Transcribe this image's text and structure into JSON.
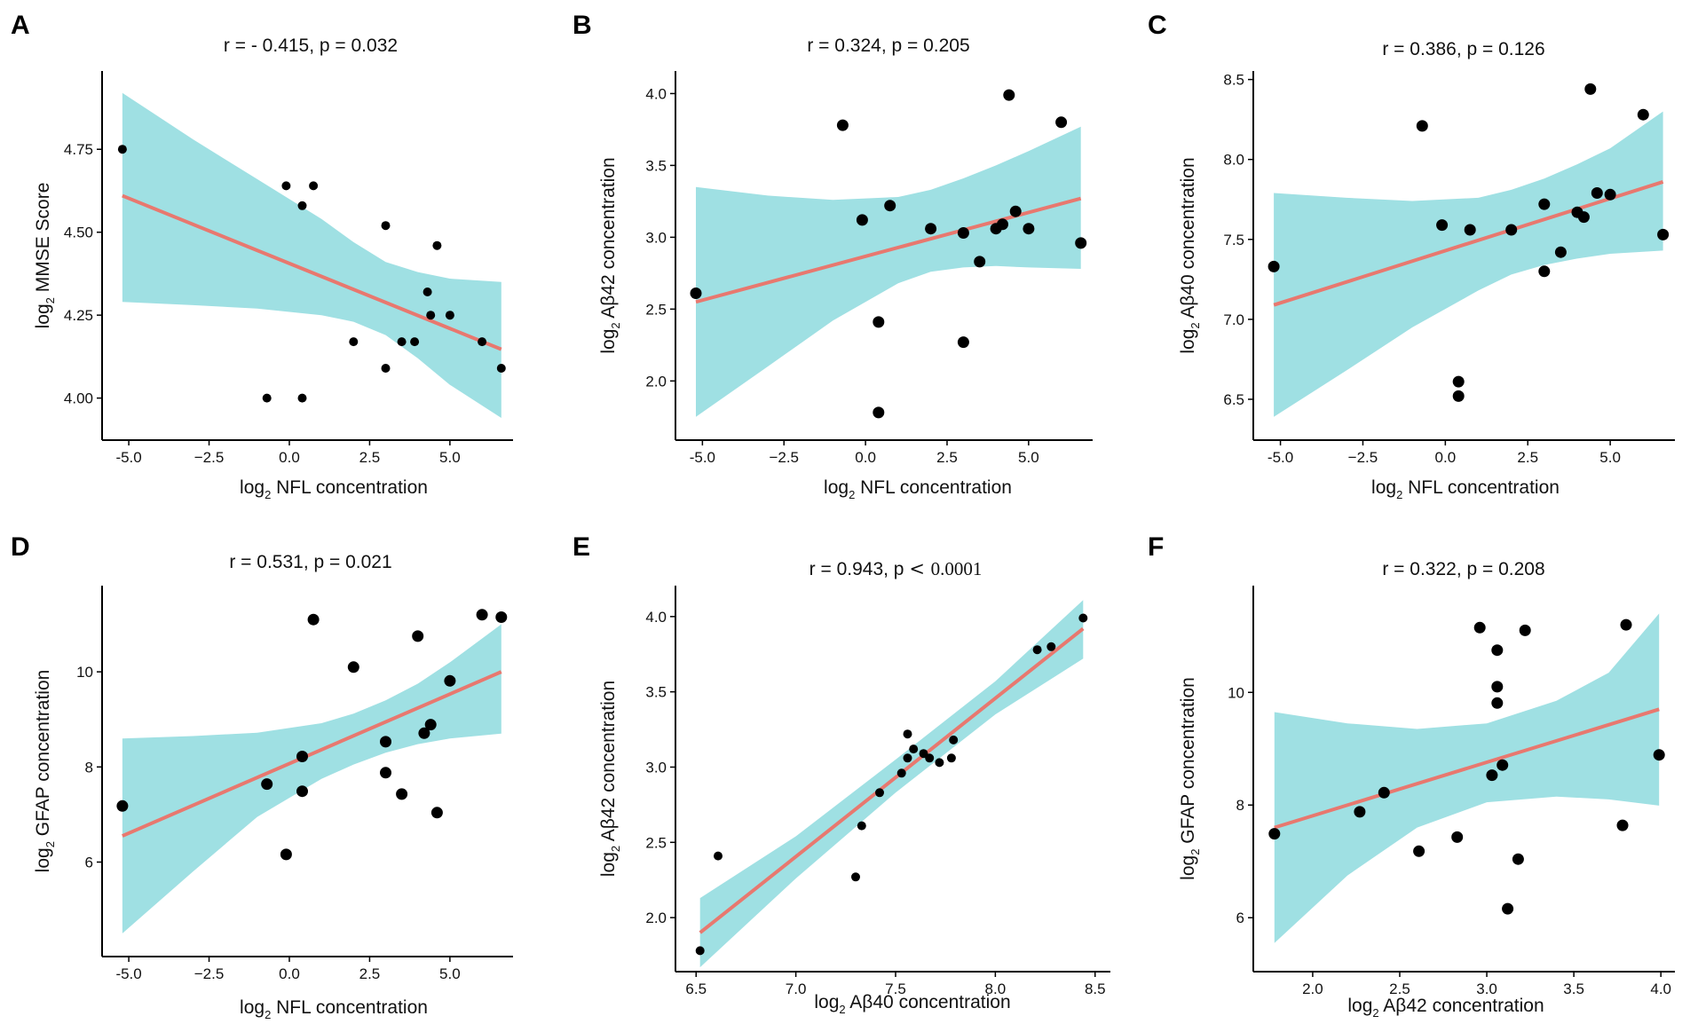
{
  "chart_data": [
    {
      "panel": "A",
      "type": "scatter",
      "title": "r = - 0.415, p = 0.032",
      "xlabel": "log₂ NFL concentration",
      "xlabel_main": "log",
      "xlabel_sub": "2",
      "xlabel_rest": " NFL concentration",
      "ylabel_main": "log",
      "ylabel_sub": "2",
      "ylabel_rest": " MMSE Score",
      "xlim": [
        -5.5,
        6.8
      ],
      "ylim": [
        3.9,
        4.97
      ],
      "xticks": [
        -5.0,
        -2.5,
        0.0,
        2.5,
        5.0
      ],
      "xtick_labels": [
        "-5.0",
        "−2.5",
        "0.0",
        "2.5",
        "5.0"
      ],
      "yticks": [
        4.0,
        4.25,
        4.5,
        4.75
      ],
      "ytick_labels": [
        "4.00",
        "4.25",
        "4.50",
        "4.75"
      ],
      "fit": {
        "x": [
          -5.2,
          6.6
        ],
        "y": [
          4.61,
          4.147
        ]
      },
      "ci_upper": [
        [
          -5.2,
          4.92
        ],
        [
          -3.0,
          4.78
        ],
        [
          -1.0,
          4.66
        ],
        [
          1.0,
          4.54
        ],
        [
          2.0,
          4.47
        ],
        [
          3.0,
          4.41
        ],
        [
          4.0,
          4.38
        ],
        [
          5.0,
          4.36
        ],
        [
          6.6,
          4.35
        ]
      ],
      "ci_lower": [
        [
          -5.2,
          4.29
        ],
        [
          -3.0,
          4.28
        ],
        [
          -1.0,
          4.27
        ],
        [
          1.0,
          4.25
        ],
        [
          2.0,
          4.23
        ],
        [
          3.0,
          4.19
        ],
        [
          4.0,
          4.12
        ],
        [
          5.0,
          4.04
        ],
        [
          6.6,
          3.94
        ]
      ],
      "points": [
        [
          -5.2,
          4.75
        ],
        [
          -0.1,
          4.64
        ],
        [
          0.75,
          4.64
        ],
        [
          0.4,
          4.58
        ],
        [
          3.0,
          4.52
        ],
        [
          4.6,
          4.46
        ],
        [
          4.3,
          4.32
        ],
        [
          4.4,
          4.25
        ],
        [
          5.0,
          4.25
        ],
        [
          2.0,
          4.17
        ],
        [
          3.5,
          4.17
        ],
        [
          3.9,
          4.17
        ],
        [
          6.0,
          4.17
        ],
        [
          3.0,
          4.09
        ],
        [
          6.6,
          4.09
        ],
        [
          -0.7,
          4.0
        ],
        [
          0.4,
          4.0
        ]
      ]
    },
    {
      "panel": "B",
      "type": "scatter",
      "title": "r = 0.324, p = 0.205",
      "xlabel": "log₂ NFL concentration",
      "xlabel_main": "log",
      "xlabel_sub": "2",
      "xlabel_rest": " NFL concentration",
      "ylabel_main": "log",
      "ylabel_sub": "2",
      "ylabel_rest": " Aβ42 concentration",
      "xlim": [
        -5.5,
        6.8
      ],
      "ylim": [
        1.65,
        4.12
      ],
      "xticks": [
        -5.0,
        -2.5,
        0.0,
        2.5,
        5.0
      ],
      "xtick_labels": [
        "-5.0",
        "−2.5",
        "0.0",
        "2.5",
        "5.0"
      ],
      "yticks": [
        2.0,
        2.5,
        3.0,
        3.5,
        4.0
      ],
      "ytick_labels": [
        "2.0",
        "2.5",
        "3.0",
        "3.5",
        "4.0"
      ],
      "fit": {
        "x": [
          -5.2,
          6.6
        ],
        "y": [
          2.55,
          3.27
        ]
      },
      "ci_upper": [
        [
          -5.2,
          3.35
        ],
        [
          -3.0,
          3.29
        ],
        [
          -1.0,
          3.26
        ],
        [
          1.0,
          3.28
        ],
        [
          2.0,
          3.33
        ],
        [
          3.0,
          3.41
        ],
        [
          4.0,
          3.5
        ],
        [
          5.0,
          3.6
        ],
        [
          6.6,
          3.77
        ]
      ],
      "ci_lower": [
        [
          -5.2,
          1.75
        ],
        [
          -3.0,
          2.1
        ],
        [
          -1.0,
          2.42
        ],
        [
          1.0,
          2.68
        ],
        [
          2.0,
          2.76
        ],
        [
          3.0,
          2.79
        ],
        [
          4.0,
          2.8
        ],
        [
          5.0,
          2.79
        ],
        [
          6.6,
          2.78
        ]
      ],
      "points": [
        [
          -5.2,
          2.61
        ],
        [
          -0.7,
          3.78
        ],
        [
          -0.1,
          3.12
        ],
        [
          0.4,
          2.41
        ],
        [
          0.4,
          1.78
        ],
        [
          0.75,
          3.22
        ],
        [
          2.0,
          3.06
        ],
        [
          3.0,
          3.03
        ],
        [
          3.0,
          2.27
        ],
        [
          3.5,
          2.83
        ],
        [
          4.0,
          3.06
        ],
        [
          4.2,
          3.09
        ],
        [
          4.4,
          3.99
        ],
        [
          4.6,
          3.18
        ],
        [
          5.0,
          3.06
        ],
        [
          6.0,
          3.8
        ],
        [
          6.6,
          2.96
        ]
      ]
    },
    {
      "panel": "C",
      "type": "scatter",
      "title": "r = 0.386, p = 0.126",
      "xlabel": "log₂ NFL concentration",
      "xlabel_main": "log",
      "xlabel_sub": "2",
      "xlabel_rest": " NFL concentration",
      "ylabel_main": "log",
      "ylabel_sub": "2",
      "ylabel_rest": " Aβ40 concentration",
      "xlim": [
        -5.5,
        6.8
      ],
      "ylim": [
        6.3,
        8.52
      ],
      "xticks": [
        -5.0,
        -2.5,
        0.0,
        2.5,
        5.0
      ],
      "xtick_labels": [
        "-5.0",
        "−2.5",
        "0.0",
        "2.5",
        "5.0"
      ],
      "yticks": [
        6.5,
        7.0,
        7.5,
        8.0,
        8.5
      ],
      "ytick_labels": [
        "6.5",
        "7.0",
        "7.5",
        "8.0",
        "8.5"
      ],
      "fit": {
        "x": [
          -5.2,
          6.6
        ],
        "y": [
          7.09,
          7.86
        ]
      },
      "ci_upper": [
        [
          -5.2,
          7.79
        ],
        [
          -3.0,
          7.76
        ],
        [
          -1.0,
          7.74
        ],
        [
          1.0,
          7.76
        ],
        [
          2.0,
          7.81
        ],
        [
          3.0,
          7.88
        ],
        [
          4.0,
          7.97
        ],
        [
          5.0,
          8.07
        ],
        [
          6.6,
          8.3
        ]
      ],
      "ci_lower": [
        [
          -5.2,
          6.39
        ],
        [
          -3.0,
          6.68
        ],
        [
          -1.0,
          6.95
        ],
        [
          1.0,
          7.18
        ],
        [
          2.0,
          7.28
        ],
        [
          3.0,
          7.34
        ],
        [
          4.0,
          7.38
        ],
        [
          5.0,
          7.41
        ],
        [
          6.6,
          7.43
        ]
      ],
      "points": [
        [
          -5.2,
          7.33
        ],
        [
          -0.7,
          8.21
        ],
        [
          -0.1,
          7.59
        ],
        [
          0.4,
          6.61
        ],
        [
          0.4,
          6.52
        ],
        [
          0.75,
          7.56
        ],
        [
          2.0,
          7.56
        ],
        [
          3.0,
          7.72
        ],
        [
          3.0,
          7.3
        ],
        [
          3.5,
          7.42
        ],
        [
          4.0,
          7.67
        ],
        [
          4.2,
          7.64
        ],
        [
          4.4,
          8.44
        ],
        [
          4.6,
          7.79
        ],
        [
          5.0,
          7.78
        ],
        [
          6.0,
          8.28
        ],
        [
          6.6,
          7.53
        ]
      ]
    },
    {
      "panel": "D",
      "type": "scatter",
      "title": "r = 0.531, p = 0.021",
      "xlabel": "log₂ NFL concentration",
      "xlabel_main": "log",
      "xlabel_sub": "2",
      "xlabel_rest": " NFL concentration",
      "ylabel_main": "log",
      "ylabel_sub": "2",
      "ylabel_rest": " GFAP  concentration",
      "xlim": [
        -5.5,
        6.8
      ],
      "ylim": [
        4.2,
        11.7
      ],
      "xticks": [
        -5.0,
        -2.5,
        0.0,
        2.5,
        5.0
      ],
      "xtick_labels": [
        "-5.0",
        "−2.5",
        "0.0",
        "2.5",
        "5.0"
      ],
      "yticks": [
        6,
        8,
        10
      ],
      "ytick_labels": [
        "6",
        "8",
        "10"
      ],
      "fit": {
        "x": [
          -5.2,
          6.6
        ],
        "y": [
          6.55,
          10.0
        ]
      },
      "ci_upper": [
        [
          -5.2,
          8.6
        ],
        [
          -3.0,
          8.65
        ],
        [
          -1.0,
          8.72
        ],
        [
          1.0,
          8.92
        ],
        [
          2.0,
          9.12
        ],
        [
          3.0,
          9.4
        ],
        [
          4.0,
          9.75
        ],
        [
          5.0,
          10.2
        ],
        [
          6.6,
          11.0
        ]
      ],
      "ci_lower": [
        [
          -5.2,
          4.5
        ],
        [
          -3.0,
          5.8
        ],
        [
          -1.0,
          6.95
        ],
        [
          1.0,
          7.75
        ],
        [
          2.0,
          8.05
        ],
        [
          3.0,
          8.3
        ],
        [
          4.0,
          8.48
        ],
        [
          5.0,
          8.6
        ],
        [
          6.6,
          8.7
        ]
      ],
      "points": [
        [
          -5.2,
          7.18
        ],
        [
          -0.7,
          7.64
        ],
        [
          -0.1,
          6.16
        ],
        [
          0.4,
          8.22
        ],
        [
          0.4,
          7.49
        ],
        [
          0.75,
          11.1
        ],
        [
          2.0,
          10.1
        ],
        [
          3.0,
          8.53
        ],
        [
          3.0,
          7.88
        ],
        [
          3.5,
          7.43
        ],
        [
          4.0,
          10.75
        ],
        [
          4.2,
          8.71
        ],
        [
          4.4,
          8.89
        ],
        [
          4.6,
          7.04
        ],
        [
          5.0,
          9.81
        ],
        [
          6.0,
          11.2
        ],
        [
          6.6,
          11.15
        ]
      ]
    },
    {
      "panel": "E",
      "type": "scatter",
      "title": "r = 0.943, p < 0.0001",
      "title_main": "r = 0.943, p",
      "title_lt": "<",
      "title_val": "0.0001",
      "xlabel": "log₂ Aβ40  concentration",
      "xlabel_main": "log",
      "xlabel_sub": "2",
      "xlabel_rest": " Aβ40  concentration",
      "ylabel_main": "log",
      "ylabel_sub": "2",
      "ylabel_rest": " Aβ42 concentration",
      "xlim": [
        6.45,
        8.55
      ],
      "ylim": [
        1.7,
        4.17
      ],
      "xticks": [
        6.5,
        7.0,
        7.5,
        8.0,
        8.5
      ],
      "xtick_labels": [
        "6.5",
        "7.0",
        "7.5",
        "8.0",
        "8.5"
      ],
      "yticks": [
        2.0,
        2.5,
        3.0,
        3.5,
        4.0
      ],
      "ytick_labels": [
        "2.0",
        "2.5",
        "3.0",
        "3.5",
        "4.0"
      ],
      "fit": {
        "x": [
          6.52,
          8.44
        ],
        "y": [
          1.9,
          3.92
        ]
      },
      "ci_upper": [
        [
          6.52,
          2.13
        ],
        [
          7.0,
          2.54
        ],
        [
          7.5,
          3.05
        ],
        [
          8.0,
          3.57
        ],
        [
          8.44,
          4.11
        ]
      ],
      "ci_lower": [
        [
          6.52,
          1.67
        ],
        [
          7.0,
          2.26
        ],
        [
          7.5,
          2.83
        ],
        [
          8.0,
          3.35
        ],
        [
          8.44,
          3.72
        ]
      ],
      "points": [
        [
          6.52,
          1.78
        ],
        [
          6.61,
          2.41
        ],
        [
          7.3,
          2.27
        ],
        [
          7.33,
          2.61
        ],
        [
          7.42,
          2.83
        ],
        [
          7.53,
          2.96
        ],
        [
          7.56,
          3.06
        ],
        [
          7.56,
          3.22
        ],
        [
          7.59,
          3.12
        ],
        [
          7.64,
          3.09
        ],
        [
          7.67,
          3.06
        ],
        [
          7.72,
          3.03
        ],
        [
          7.78,
          3.06
        ],
        [
          7.79,
          3.18
        ],
        [
          8.21,
          3.78
        ],
        [
          8.28,
          3.8
        ],
        [
          8.44,
          3.99
        ]
      ]
    },
    {
      "panel": "F",
      "type": "scatter",
      "title": "r = 0.322, p = 0.208",
      "xlabel": "log₂ Aβ42 concentration",
      "xlabel_main": "log",
      "xlabel_sub": "2",
      "xlabel_rest": " Aβ42 concentration",
      "ylabel_main": "log",
      "ylabel_sub": "2",
      "ylabel_rest": " GFAP  concentration",
      "xlim": [
        1.72,
        4.05
      ],
      "ylim": [
        5.2,
        11.8
      ],
      "xticks": [
        2.0,
        2.5,
        3.0,
        3.5,
        4.0
      ],
      "xtick_labels": [
        "2.0",
        "2.5",
        "3.0",
        "3.5",
        "4.0"
      ],
      "yticks": [
        6,
        8,
        10
      ],
      "ytick_labels": [
        "6",
        "8",
        "10"
      ],
      "fit": {
        "x": [
          1.78,
          3.99
        ],
        "y": [
          7.6,
          9.7
        ]
      },
      "ci_upper": [
        [
          1.78,
          9.65
        ],
        [
          2.2,
          9.45
        ],
        [
          2.6,
          9.35
        ],
        [
          3.0,
          9.45
        ],
        [
          3.4,
          9.85
        ],
        [
          3.7,
          10.35
        ],
        [
          3.99,
          11.4
        ]
      ],
      "ci_lower": [
        [
          1.78,
          5.55
        ],
        [
          2.2,
          6.75
        ],
        [
          2.6,
          7.6
        ],
        [
          3.0,
          8.05
        ],
        [
          3.4,
          8.15
        ],
        [
          3.7,
          8.1
        ],
        [
          3.99,
          7.99
        ]
      ],
      "points": [
        [
          1.78,
          7.49
        ],
        [
          2.27,
          7.88
        ],
        [
          2.41,
          8.22
        ],
        [
          2.61,
          7.18
        ],
        [
          2.83,
          7.43
        ],
        [
          2.96,
          11.15
        ],
        [
          3.03,
          8.53
        ],
        [
          3.06,
          10.75
        ],
        [
          3.06,
          10.1
        ],
        [
          3.06,
          9.81
        ],
        [
          3.09,
          8.71
        ],
        [
          3.12,
          6.16
        ],
        [
          3.18,
          7.04
        ],
        [
          3.22,
          11.1
        ],
        [
          3.78,
          7.64
        ],
        [
          3.8,
          11.2
        ],
        [
          3.99,
          8.89
        ]
      ]
    }
  ]
}
